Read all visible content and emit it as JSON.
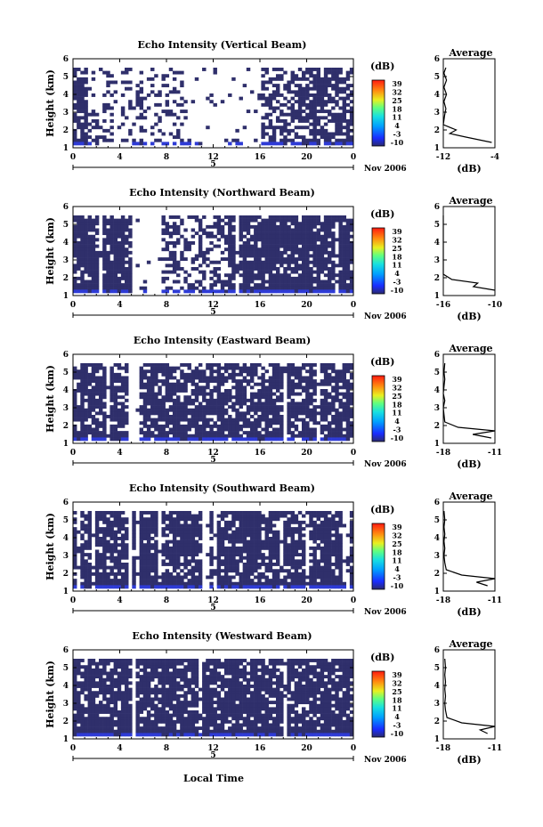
{
  "figure": {
    "xlabel": "Local Time",
    "date_label": "Nov 2006",
    "day_label": "5",
    "ylabel": "Height (km)",
    "avg_title": "Average",
    "avg_xlabel": "(dB)",
    "colorbar_unit": "(dB)",
    "colorbar_ticks": [
      "39",
      "32",
      "25",
      "18",
      "11",
      "4",
      "-3",
      "-10"
    ]
  },
  "chart_data": [
    {
      "type": "heatmap",
      "title": "Echo Intensity (Vertical Beam)",
      "x_ticks": [
        "0",
        "4",
        "8",
        "12",
        "16",
        "20",
        "0"
      ],
      "y_ticks": [
        "1",
        "2",
        "3",
        "4",
        "5",
        "6"
      ],
      "xlim": [
        0,
        24
      ],
      "ylim": [
        1,
        6
      ],
      "clim": [
        -10,
        39
      ],
      "avg": {
        "title": "Average",
        "xlim": [
          -12,
          -4
        ],
        "x_ticks": [
          "-12",
          "-4"
        ],
        "heights": [
          1.3,
          1.6,
          1.8,
          2.0,
          2.3,
          2.8,
          3.2,
          3.6,
          4.0,
          4.4,
          4.8,
          5.2,
          5.5
        ],
        "values": [
          -4.5,
          -8.5,
          -11.0,
          -10.0,
          -12.0,
          -11.8,
          -11.6,
          -11.9,
          -11.5,
          -11.9,
          -11.5,
          -11.9,
          -11.6
        ]
      }
    },
    {
      "type": "heatmap",
      "title": "Echo Intensity (Northward Beam)",
      "x_ticks": [
        "0",
        "4",
        "8",
        "12",
        "16",
        "20",
        "0"
      ],
      "y_ticks": [
        "1",
        "2",
        "3",
        "4",
        "5",
        "6"
      ],
      "xlim": [
        0,
        24
      ],
      "ylim": [
        1,
        6
      ],
      "clim": [
        -10,
        39
      ],
      "avg": {
        "title": "Average",
        "xlim": [
          -16,
          -10
        ],
        "x_ticks": [
          "-16",
          "-10"
        ],
        "heights": [
          1.3,
          1.5,
          1.7,
          1.9,
          2.2,
          2.6,
          3.0,
          3.4,
          3.8,
          4.2,
          4.6,
          5.0,
          5.5
        ],
        "values": [
          -10.0,
          -12.5,
          -12.0,
          -15.0,
          -16.0,
          -16.2,
          -16.3,
          -16.1,
          -16.3,
          -16.2,
          -16.3,
          -16.2,
          -16.3
        ]
      }
    },
    {
      "type": "heatmap",
      "title": "Echo Intensity (Eastward Beam)",
      "x_ticks": [
        "0",
        "4",
        "8",
        "12",
        "16",
        "20",
        "0"
      ],
      "y_ticks": [
        "1",
        "2",
        "3",
        "4",
        "5",
        "6"
      ],
      "xlim": [
        0,
        24
      ],
      "ylim": [
        1,
        6
      ],
      "clim": [
        -10,
        39
      ],
      "avg": {
        "title": "Average",
        "xlim": [
          -18,
          -11
        ],
        "x_ticks": [
          "-18",
          "-11"
        ],
        "heights": [
          1.3,
          1.5,
          1.7,
          1.9,
          2.2,
          2.6,
          3.0,
          3.4,
          3.8,
          4.2,
          4.6,
          5.0,
          5.5
        ],
        "values": [
          -11.5,
          -14.0,
          -11.0,
          -16.0,
          -17.8,
          -17.9,
          -18.0,
          -17.8,
          -18.0,
          -17.9,
          -17.8,
          -17.9,
          -17.8
        ]
      }
    },
    {
      "type": "heatmap",
      "title": "Echo Intensity (Southward Beam)",
      "x_ticks": [
        "0",
        "4",
        "8",
        "12",
        "16",
        "20",
        "0"
      ],
      "y_ticks": [
        "1",
        "2",
        "3",
        "4",
        "5",
        "6"
      ],
      "xlim": [
        0,
        24
      ],
      "ylim": [
        1,
        6
      ],
      "clim": [
        -10,
        39
      ],
      "avg": {
        "title": "Average",
        "xlim": [
          -18,
          -11
        ],
        "x_ticks": [
          "-18",
          "-11"
        ],
        "heights": [
          1.3,
          1.5,
          1.7,
          1.9,
          2.2,
          2.6,
          3.0,
          3.4,
          3.8,
          4.2,
          4.6,
          5.0,
          5.5
        ],
        "values": [
          -12.0,
          -13.5,
          -11.0,
          -15.5,
          -17.6,
          -17.8,
          -17.9,
          -17.8,
          -17.9,
          -17.8,
          -17.9,
          -17.8,
          -17.9
        ]
      }
    },
    {
      "type": "heatmap",
      "title": "Echo Intensity (Westward Beam)",
      "x_ticks": [
        "0",
        "4",
        "8",
        "12",
        "16",
        "20",
        "0"
      ],
      "y_ticks": [
        "1",
        "2",
        "3",
        "4",
        "5",
        "6"
      ],
      "xlim": [
        0,
        24
      ],
      "ylim": [
        1,
        6
      ],
      "clim": [
        -10,
        39
      ],
      "avg": {
        "title": "Average",
        "xlim": [
          -18,
          -11
        ],
        "x_ticks": [
          "-18",
          "-11"
        ],
        "heights": [
          1.3,
          1.5,
          1.7,
          1.9,
          2.2,
          2.6,
          3.0,
          3.4,
          3.8,
          4.2,
          4.6,
          5.0,
          5.5
        ],
        "values": [
          -12.0,
          -13.0,
          -11.0,
          -15.5,
          -17.5,
          -17.7,
          -17.8,
          -17.7,
          -17.8,
          -17.7,
          -17.8,
          -17.7,
          -17.8
        ]
      }
    }
  ]
}
